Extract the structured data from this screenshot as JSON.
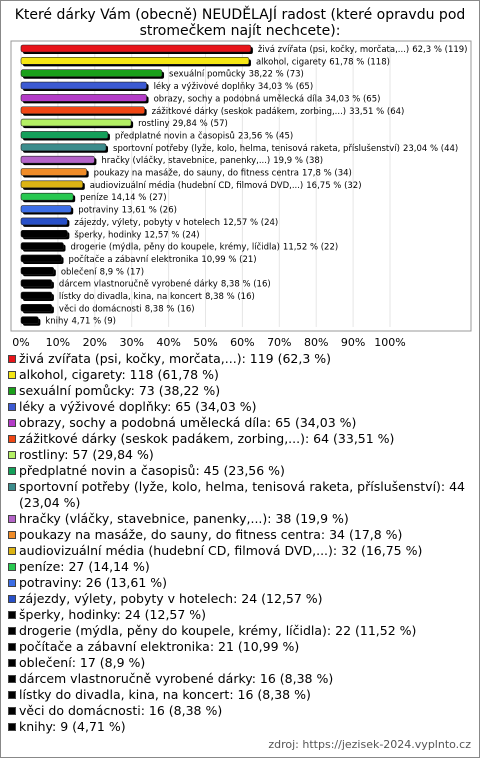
{
  "chart_data": {
    "type": "bar",
    "orientation": "horizontal",
    "title": "Které dárky Vám (obecně) NEUDĚLAJÍ radost (které opravdu pod stromečkem najít nechcete):",
    "categories": [
      "živá zvířata (psi, kočky, morčata,...)",
      "alkohol, cigarety",
      "sexuální pomůcky",
      "léky a výživové doplňky",
      "obrazy, sochy a podobná umělecká díla",
      "zážitkové dárky (seskok padákem, zorbing,...)",
      "rostliny",
      "předplatné novin a časopisů",
      "sportovní potřeby (lyže, kolo, helma, tenisová raketa, příslušenství)",
      "hračky (vláčky, stavebnice, panenky,...)",
      "poukazy na masáže, do sauny, do fitness centra",
      "audiovizuální média (hudební CD, filmová DVD,...)",
      "peníze",
      "potraviny",
      "zájezdy, výlety, pobyty v hotelech",
      "šperky, hodinky",
      "drogerie (mýdla, pěny do koupele, krémy, líčidla)",
      "počítače a zábavní elektronika",
      "oblečení",
      "dárcem vlastnoručně vyrobené dárky",
      "lístky do divadla, kina, na koncert",
      "věci do domácnosti",
      "knihy"
    ],
    "values": [
      62.3,
      61.78,
      38.22,
      34.03,
      34.03,
      33.51,
      29.84,
      23.56,
      23.04,
      19.9,
      17.8,
      16.75,
      14.14,
      13.61,
      12.57,
      12.57,
      11.52,
      10.99,
      8.9,
      8.38,
      8.38,
      8.38,
      4.71
    ],
    "value_labels": [
      "62,3 % (119)",
      "61,78 % (118)",
      "38,22 % (73)",
      "34,03 % (65)",
      "34,03 % (65)",
      "33,51 % (64)",
      "29,84 % (57)",
      "23,56 % (45)",
      "23,04 % (44)",
      "19,9 % (38)",
      "17,8 % (34)",
      "16,75 % (32)",
      "14,14 % (27)",
      "13,61 % (26)",
      "12,57 % (24)",
      "12,57 % (24)",
      "11,52 % (22)",
      "10,99 % (21)",
      "8,9 % (17)",
      "8,38 % (16)",
      "8,38 % (16)",
      "8,38 % (16)",
      "4,71 % (9)"
    ],
    "legend_labels": [
      "živá zvířata (psi, kočky, morčata,...): 119 (62,3 %)",
      "alkohol, cigarety: 118 (61,78 %)",
      "sexuální pomůcky: 73 (38,22 %)",
      "léky a výživové doplňky: 65 (34,03 %)",
      "obrazy, sochy a podobná umělecká díla: 65 (34,03 %)",
      "zážitkové dárky (seskok padákem, zorbing,...): 64 (33,51 %)",
      "rostliny: 57 (29,84 %)",
      "předplatné novin a časopisů: 45 (23,56 %)",
      "sportovní potřeby (lyže, kolo, helma, tenisová raketa, příslušenství): 44 (23,04 %)",
      "hračky (vláčky, stavebnice, panenky,...): 38 (19,9 %)",
      "poukazy na masáže, do sauny, do fitness centra: 34 (17,8 %)",
      "audiovizuální média (hudební CD, filmová DVD,...): 32 (16,75 %)",
      "peníze: 27 (14,14 %)",
      "potraviny: 26 (13,61 %)",
      "zájezdy, výlety, pobyty v hotelech: 24 (12,57 %)",
      "šperky, hodinky: 24 (12,57 %)",
      "drogerie (mýdla, pěny do koupele, krémy, líčidla): 22 (11,52 %)",
      "počítače a zábavní elektronika: 21 (10,99 %)",
      "oblečení: 17 (8,9 %)",
      "dárcem vlastnoručně vyrobené dárky: 16 (8,38 %)",
      "lístky do divadla, kina, na koncert: 16 (8,38 %)",
      "věci do domácnosti: 16 (8,38 %)",
      "knihy: 9 (4,71 %)"
    ],
    "colors": [
      "#e8141a",
      "#f5e614",
      "#1aa01a",
      "#3c5ad2",
      "#b43cc8",
      "#f04614",
      "#b4f064",
      "#14a05a",
      "#3c8c8c",
      "#b464c8",
      "#f08c28",
      "#dcb414",
      "#28c850",
      "#3c6ee6",
      "#2850c8",
      "#000000",
      "#000000",
      "#000000",
      "#000000",
      "#000000",
      "#000000",
      "#000000",
      "#000000"
    ],
    "xlim": [
      0,
      100
    ],
    "xticks": [
      {
        "value": 0,
        "label": "0%"
      },
      {
        "value": 10,
        "label": "10%"
      },
      {
        "value": 20,
        "label": "20%"
      },
      {
        "value": 30,
        "label": "30%"
      },
      {
        "value": 40,
        "label": "40%"
      },
      {
        "value": 50,
        "label": "50%"
      },
      {
        "value": 60,
        "label": "60%"
      },
      {
        "value": 70,
        "label": "70%"
      },
      {
        "value": 80,
        "label": "80%"
      },
      {
        "value": 90,
        "label": "90%"
      },
      {
        "value": 100,
        "label": "100%"
      }
    ],
    "source": "zdroj: https://jezisek-2024.vyplnto.cz"
  }
}
